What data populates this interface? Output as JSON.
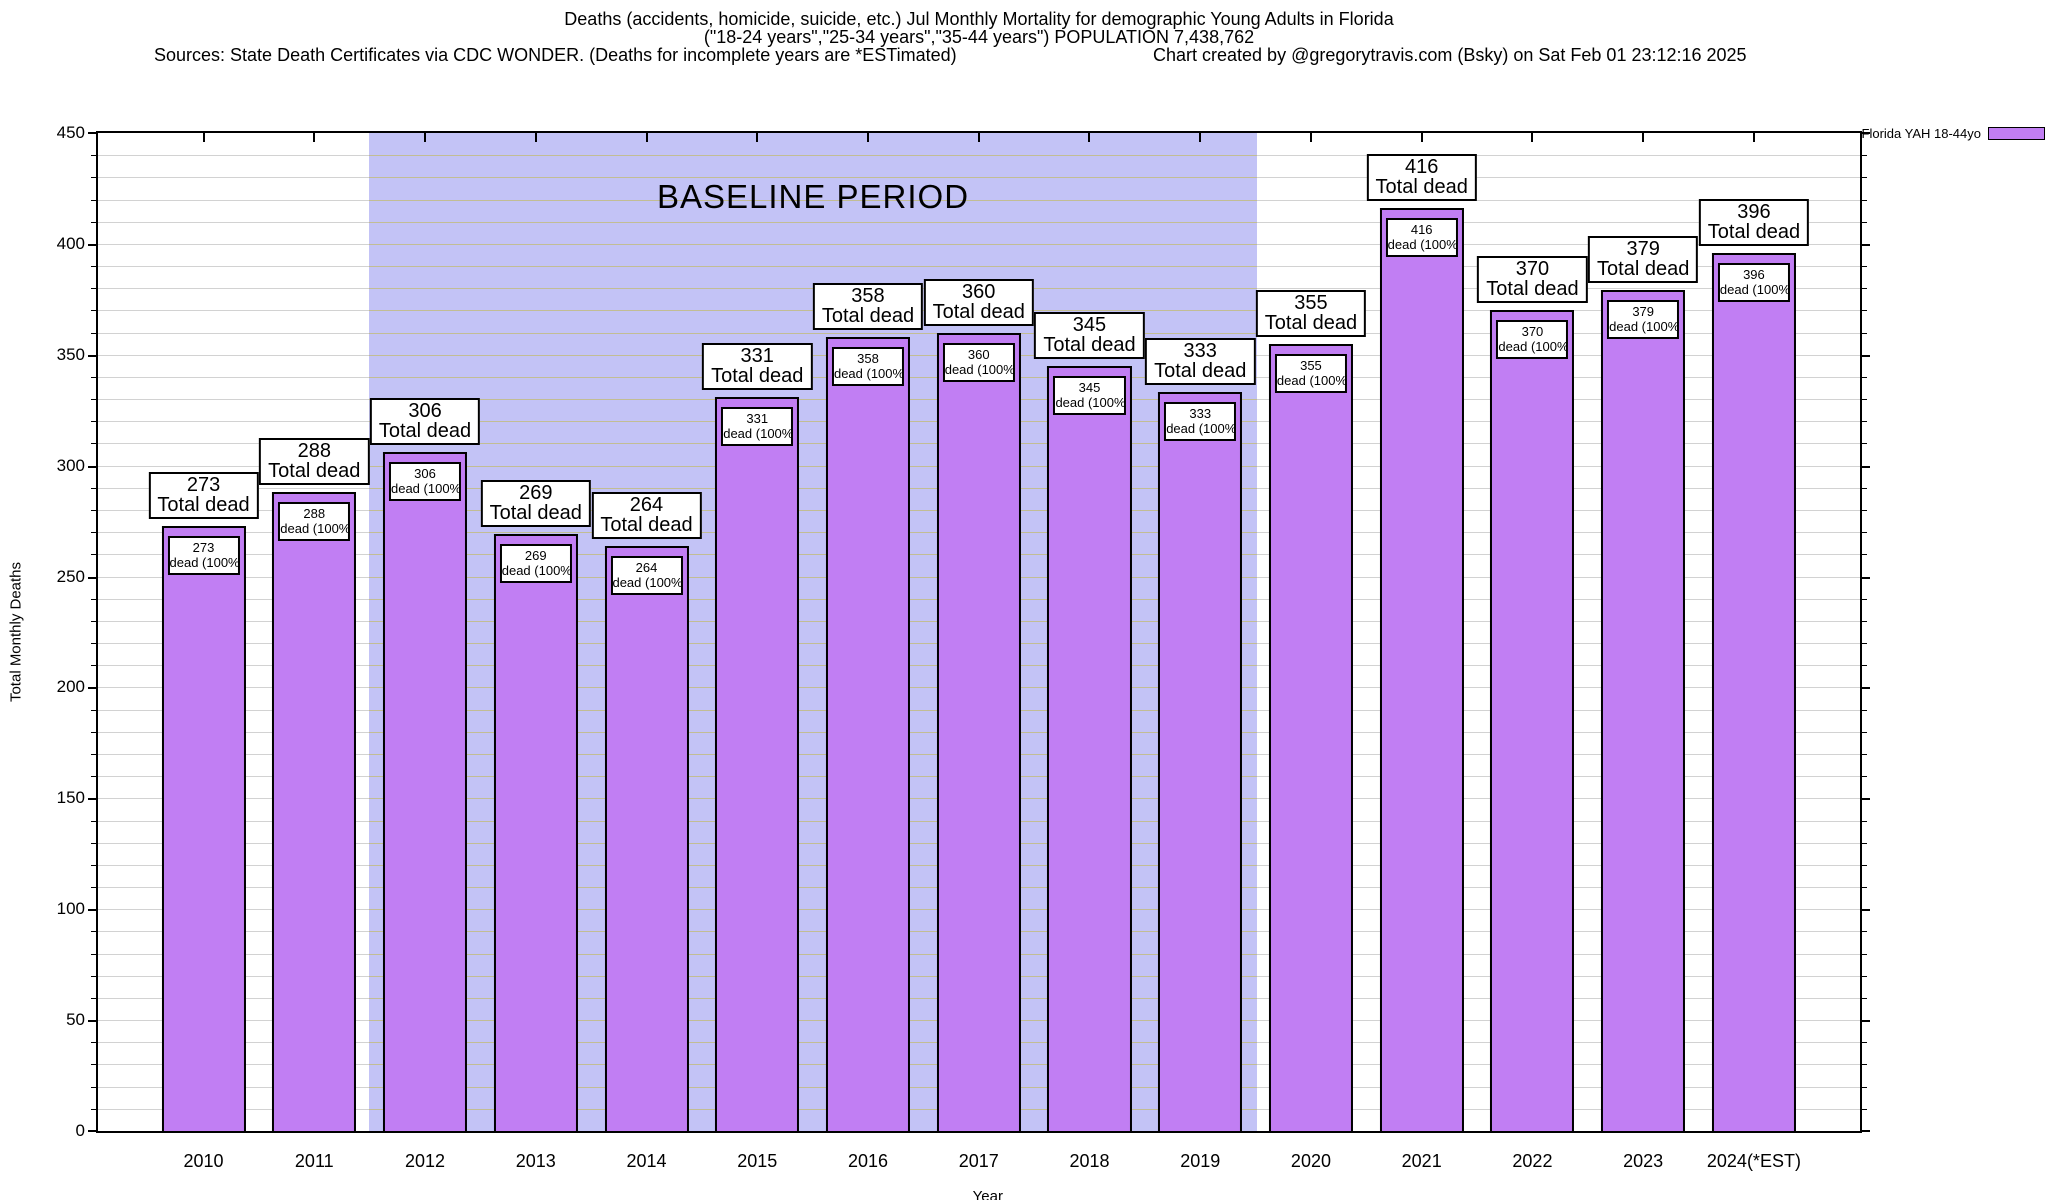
{
  "header": {
    "title_line1": "Deaths (accidents, homicide, suicide, etc.) Jul Monthly Mortality for demographic Young Adults in Florida",
    "title_line2": "(\"18-24 years\",\"25-34 years\",\"35-44 years\") POPULATION 7,438,762",
    "sources": "Sources: State Death Certificates via CDC WONDER. (Deaths for incomplete years are *ESTimated)",
    "credit": "Chart created by @gregorytravis.com (Bsky) on Sat Feb 01 23:12:16 2025"
  },
  "legend": {
    "label": "Florida YAH 18-44yo",
    "swatch_color": "#bd80f2"
  },
  "chart_data": {
    "type": "bar",
    "title": "Deaths (accidents, homicide, suicide, etc.) Jul Monthly Mortality for demographic Young Adults in Florida",
    "xlabel": "Year",
    "ylabel": "Total Monthly Deaths",
    "ylim": [
      0,
      450
    ],
    "y_major_ticks": [
      0,
      50,
      100,
      150,
      200,
      250,
      300,
      350,
      400,
      450
    ],
    "y_minor_step": 10,
    "grid": true,
    "legend_position": "top-right",
    "categories": [
      "2010",
      "2011",
      "2012",
      "2013",
      "2014",
      "2015",
      "2016",
      "2017",
      "2018",
      "2019",
      "2020",
      "2021",
      "2022",
      "2023",
      "2024(*EST)"
    ],
    "values": [
      273,
      288,
      306,
      269,
      264,
      331,
      358,
      360,
      345,
      333,
      355,
      416,
      370,
      379,
      396
    ],
    "series_name": "Florida YAH 18-44yo",
    "bar_color": "#c17ef3",
    "bar_label_line2": "Total dead",
    "bar_inner_label_line2": "dead (100%)",
    "baseline_region": {
      "label": "BASELINE PERIOD",
      "start_year": "2012",
      "end_year": "2019",
      "color": "#c3c3f6",
      "grid_color": "#c2bd94",
      "x_start_frac": 0.1538,
      "x_end_frac": 0.6578
    }
  }
}
